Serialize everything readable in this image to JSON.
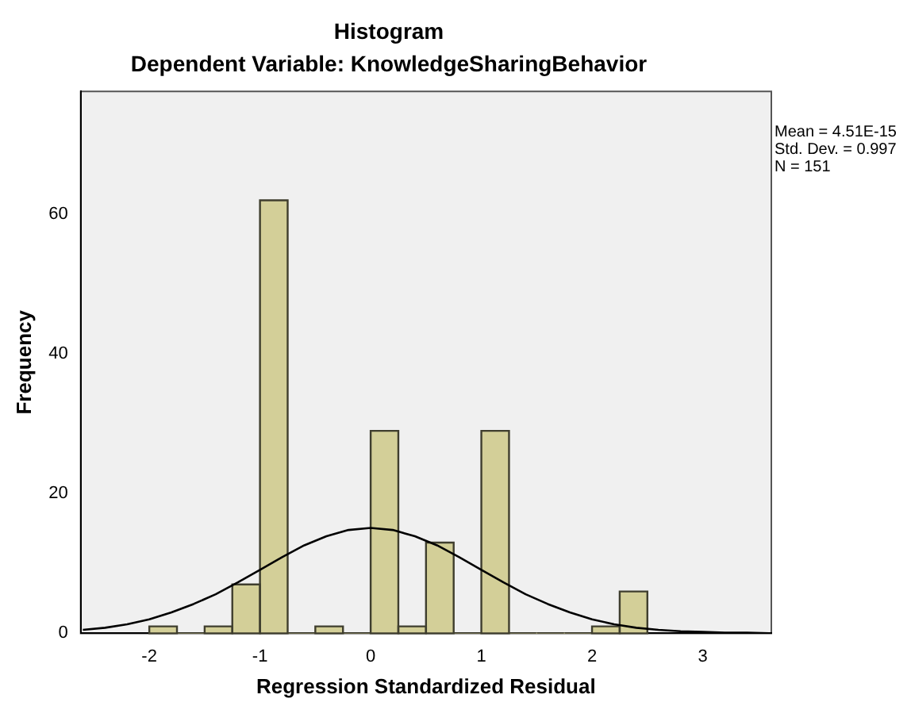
{
  "chart_data": {
    "type": "histogram",
    "title": "Histogram",
    "subtitle": "Dependent Variable: KnowledgeSharingBehavior",
    "xlabel": "Regression Standardized Residual",
    "ylabel": "Frequency",
    "bins": [
      -2,
      -1.75,
      -1.5,
      -1.25,
      -1,
      -0.75,
      -0.5,
      -0.25,
      0,
      0.25,
      0.5,
      0.75,
      1,
      1.25,
      1.5,
      1.75,
      2,
      2.25,
      2.5
    ],
    "values": [
      1,
      0,
      1,
      7,
      62,
      0,
      1,
      0,
      29,
      1,
      13,
      0,
      29,
      0,
      0,
      0,
      1,
      6
    ],
    "color": "#d3cf98",
    "series": [
      {
        "type": "line",
        "color": "#000000",
        "x": [
          -2.6,
          -2.4,
          -2.2,
          -2.0,
          -1.8,
          -1.6,
          -1.4,
          -1.2,
          -1.0,
          -0.8,
          -0.6,
          -0.4,
          -0.2,
          0,
          0.2,
          0.4,
          0.6,
          0.8,
          1.0,
          1.2,
          1.4,
          1.6,
          1.8,
          2.0,
          2.2,
          2.4,
          2.6,
          2.8,
          3.0,
          3.2,
          3.4,
          3.6
        ],
        "values": [
          0.5,
          0.8,
          1.3,
          2.0,
          3.0,
          4.2,
          5.6,
          7.3,
          9.1,
          10.9,
          12.6,
          13.9,
          14.8,
          15.1,
          14.8,
          13.9,
          12.6,
          10.9,
          9.1,
          7.3,
          5.6,
          4.2,
          3.0,
          2.0,
          1.3,
          0.8,
          0.5,
          0.3,
          0.2,
          0.1,
          0.1,
          0.0
        ]
      }
    ],
    "marker": "none",
    "xlim": [
      -2.62,
      3.62
    ],
    "xticks": [
      -2,
      -1,
      0,
      1,
      2,
      3
    ],
    "ylim": [
      0,
      77.6
    ],
    "yticks": [
      0,
      20,
      40,
      60
    ],
    "grid": false,
    "legend": false,
    "annotations": [
      "Mean = 4.51E-15",
      "Std. Dev. = 0.997",
      "N = 151"
    ]
  }
}
